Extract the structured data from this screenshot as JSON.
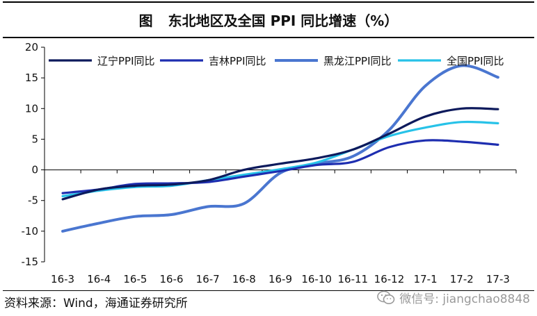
{
  "header": {
    "prefix": "图",
    "title": "东北地区及全国 PPI 同比增速（%）"
  },
  "footer": {
    "source": "资料来源：Wind，海通证券研究所",
    "watermark": "微信号: jiangchao8848",
    "watermark_icon": "wechat-icon"
  },
  "chart_data": {
    "type": "line",
    "title": "东北地区及全国 PPI 同比增速（%）",
    "categories": [
      "16-3",
      "16-4",
      "16-5",
      "16-6",
      "16-7",
      "16-8",
      "16-9",
      "16-10",
      "16-11",
      "16-12",
      "17-1",
      "17-2",
      "17-3"
    ],
    "y_ticks": [
      "20",
      "15",
      "10",
      "5",
      "0",
      "-5",
      "-10",
      "-15"
    ],
    "ylim": [
      -15,
      20
    ],
    "grid": false,
    "legend_position": "top",
    "series": [
      {
        "name": "辽宁PPI同比",
        "color": "#0d1a5c",
        "width": 3.2,
        "values": [
          -4.8,
          -3.2,
          -2.6,
          -2.4,
          -1.7,
          0.0,
          1.0,
          1.9,
          3.3,
          5.9,
          8.7,
          10.0,
          9.9
        ]
      },
      {
        "name": "吉林PPI同比",
        "color": "#1e2eb0",
        "width": 3.2,
        "values": [
          -3.8,
          -3.2,
          -2.3,
          -2.2,
          -2.0,
          -1.1,
          -0.2,
          0.8,
          1.3,
          3.7,
          4.8,
          4.6,
          4.1
        ]
      },
      {
        "name": "黑龙江PPI同比",
        "color": "#4a76d0",
        "width": 4,
        "values": [
          -10.0,
          -8.7,
          -7.6,
          -7.3,
          -6.0,
          -5.5,
          -0.5,
          1.0,
          2.2,
          6.5,
          13.7,
          17.0,
          15.1
        ]
      },
      {
        "name": "全国PPI同比",
        "color": "#27c2e8",
        "width": 3.2,
        "values": [
          -4.3,
          -3.4,
          -2.8,
          -2.6,
          -1.7,
          -0.8,
          0.1,
          1.2,
          3.3,
          5.5,
          6.9,
          7.8,
          7.6
        ]
      }
    ]
  }
}
